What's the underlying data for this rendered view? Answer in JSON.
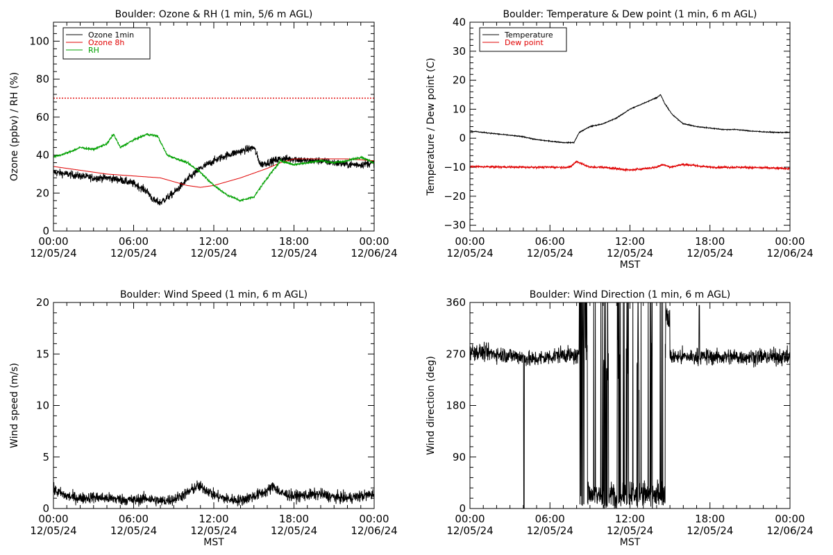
{
  "colors": {
    "ozone_1min": "#000000",
    "ozone_8h": "#e00000",
    "rh": "#00a000",
    "temperature": "#000000",
    "dew_point": "#e00000",
    "wind": "#000000",
    "threshold": "#e00000"
  },
  "chart_data": [
    {
      "id": "ozone_rh",
      "type": "line",
      "title": "Boulder: Ozone & RH (1 min, 5/6 m AGL)",
      "xlabel": "",
      "ylabel": "Ozone (ppbv) / RH (%)",
      "xlim_hours": [
        0,
        24
      ],
      "ylim": [
        0,
        110
      ],
      "yticks": [
        "0",
        "20",
        "40",
        "60",
        "80",
        "100"
      ],
      "ytick_values": [
        0,
        20,
        40,
        60,
        80,
        100
      ],
      "xtick_times": [
        "00:00",
        "06:00",
        "12:00",
        "18:00",
        "00:00"
      ],
      "xtick_dates": [
        "12/05/24",
        "12/05/24",
        "12/05/24",
        "12/05/24",
        "12/06/24"
      ],
      "legend_position": "top-left",
      "threshold_line": {
        "y": 70,
        "style": "dotted"
      },
      "series": [
        {
          "name": "Ozone 1min",
          "color_key": "ozone_1min",
          "noise": 2.0,
          "x_hours": [
            0,
            1,
            2,
            3,
            4,
            5,
            6,
            7,
            7.5,
            8,
            9,
            10,
            11,
            12,
            13,
            14,
            15,
            15.5,
            16,
            17,
            18,
            19,
            20,
            21,
            22,
            23,
            24
          ],
          "values": [
            31,
            30,
            29,
            28,
            28,
            27,
            25,
            21,
            16,
            15,
            20,
            27,
            33,
            37,
            40,
            42,
            44,
            35,
            36,
            38,
            38,
            37,
            37,
            36,
            35,
            35,
            36
          ]
        },
        {
          "name": "Ozone 8h",
          "color_key": "ozone_8h",
          "noise": 0,
          "x_hours": [
            0,
            2,
            4,
            6,
            8,
            10,
            11,
            12,
            14,
            16,
            17,
            18,
            20,
            22,
            24
          ],
          "values": [
            34,
            32,
            30,
            29,
            28,
            24,
            23,
            24,
            28,
            33,
            36,
            38,
            38,
            38,
            37
          ]
        },
        {
          "name": "RH",
          "color_key": "rh",
          "noise": 0.6,
          "x_hours": [
            0,
            1,
            2,
            3,
            4,
            4.5,
            5,
            6,
            7,
            7.8,
            8.5,
            10,
            11,
            12,
            13,
            14,
            15,
            16,
            17,
            18,
            19,
            20,
            21,
            22,
            23,
            24
          ],
          "values": [
            39,
            41,
            44,
            43,
            46,
            51,
            44,
            48,
            51,
            50,
            40,
            36,
            31,
            24,
            19,
            16,
            18,
            28,
            37,
            35,
            36,
            37,
            36,
            37,
            39,
            36
          ]
        }
      ]
    },
    {
      "id": "temp_dew",
      "type": "line",
      "title": "Boulder: Temperature & Dew point (1 min, 6 m AGL)",
      "xlabel": "MST",
      "ylabel": "Temperature / Dew point (C)",
      "xlim_hours": [
        0,
        24
      ],
      "ylim": [
        -32,
        40
      ],
      "yticks": [
        "−30",
        "−20",
        "−10",
        "0",
        "10",
        "20",
        "30",
        "40"
      ],
      "ytick_values": [
        -30,
        -20,
        -10,
        0,
        10,
        20,
        30,
        40
      ],
      "xtick_times": [
        "00:00",
        "06:00",
        "12:00",
        "18:00",
        "00:00"
      ],
      "xtick_dates": [
        "12/05/24",
        "12/05/24",
        "12/05/24",
        "12/05/24",
        "12/06/24"
      ],
      "legend_position": "top-left",
      "series": [
        {
          "name": "Temperature",
          "color_key": "temperature",
          "noise": 0.15,
          "x_hours": [
            0,
            1,
            2,
            3,
            4,
            5,
            6,
            7,
            7.8,
            8.2,
            9,
            10,
            11,
            12,
            13,
            13.5,
            14,
            14.3,
            14.6,
            15.2,
            16,
            17,
            18,
            19,
            20,
            21,
            22,
            23,
            24
          ],
          "values": [
            2.5,
            2,
            1.5,
            1,
            0.5,
            -0.5,
            -1,
            -1.5,
            -1.5,
            2,
            4,
            5,
            7,
            10,
            12,
            13,
            14,
            15,
            12,
            8,
            5,
            4,
            3.5,
            3,
            3,
            2.5,
            2.2,
            2,
            2
          ]
        },
        {
          "name": "Dew point",
          "color_key": "dew_point",
          "noise": 0.35,
          "x_hours": [
            0,
            2,
            4,
            6,
            7.5,
            8,
            8.5,
            9,
            10,
            11,
            12,
            13,
            14,
            14.5,
            15,
            16,
            17,
            18,
            20,
            22,
            24
          ],
          "values": [
            -9.8,
            -9.9,
            -10,
            -10,
            -10,
            -8,
            -9,
            -10,
            -10,
            -10.5,
            -11,
            -10.5,
            -10,
            -9,
            -10,
            -9,
            -9.5,
            -10,
            -10,
            -10.2,
            -10.5
          ]
        }
      ]
    },
    {
      "id": "wind_speed",
      "type": "line",
      "title": "Boulder: Wind Speed (1 min, 6 m AGL)",
      "xlabel": "MST",
      "ylabel": "Wind speed (m/s)",
      "xlim_hours": [
        0,
        24
      ],
      "ylim": [
        0,
        20
      ],
      "yticks": [
        "0",
        "5",
        "10",
        "15",
        "20"
      ],
      "ytick_values": [
        0,
        5,
        10,
        15,
        20
      ],
      "xtick_times": [
        "00:00",
        "06:00",
        "12:00",
        "18:00",
        "00:00"
      ],
      "xtick_dates": [
        "12/05/24",
        "12/05/24",
        "12/05/24",
        "12/05/24",
        "12/06/24"
      ],
      "series": [
        {
          "name": "",
          "color_key": "wind",
          "noise": 0.55,
          "floor": 0,
          "x_hours": [
            0,
            1,
            2,
            3,
            4,
            5,
            6,
            7,
            8,
            9,
            10,
            10.8,
            11.5,
            12,
            13,
            14,
            15,
            16,
            16.5,
            17,
            18,
            19,
            20,
            21,
            22,
            23,
            24
          ],
          "values": [
            1.8,
            1.2,
            1.0,
            1.1,
            1.0,
            0.9,
            0.8,
            1.0,
            0.7,
            0.9,
            1.5,
            2.2,
            1.8,
            1.3,
            0.9,
            0.8,
            1.2,
            1.7,
            2.2,
            1.5,
            1.2,
            1.3,
            1.4,
            1.1,
            1.0,
            1.2,
            1.4
          ]
        }
      ]
    },
    {
      "id": "wind_dir",
      "type": "line",
      "title": "Boulder: Wind Direction (1 min, 6 m AGL)",
      "xlabel": "MST",
      "ylabel": "Wind direction (deg)",
      "xlim_hours": [
        0,
        24
      ],
      "ylim": [
        0,
        360
      ],
      "yticks": [
        "0",
        "90",
        "180",
        "270",
        "360"
      ],
      "ytick_values": [
        0,
        90,
        180,
        270,
        360
      ],
      "xtick_times": [
        "00:00",
        "06:00",
        "12:00",
        "18:00",
        "00:00"
      ],
      "xtick_dates": [
        "12/05/24",
        "12/05/24",
        "12/05/24",
        "12/05/24",
        "12/06/24"
      ],
      "series": [
        {
          "name": "",
          "color_key": "wind",
          "noise": 14,
          "floor": 0,
          "ceil": 360,
          "x_hours": [
            0,
            2,
            4,
            4.5,
            6,
            7,
            8,
            24
          ],
          "values": [
            275,
            270,
            265,
            260,
            265,
            270,
            265,
            265
          ],
          "spike_down_hour": 4.05,
          "chaotic_window_hours": [
            8.2,
            14.7
          ],
          "low_segments_hours": [
            [
              8.8,
              10.0
            ],
            [
              10.4,
              11.0
            ],
            [
              11.3,
              11.7
            ],
            [
              11.9,
              12.5
            ],
            [
              12.7,
              13.6
            ],
            [
              13.7,
              14.6
            ]
          ],
          "recovery_peak_hours": [
            14.7,
            15.0
          ],
          "late_spike_hour": 17.2
        }
      ]
    }
  ]
}
